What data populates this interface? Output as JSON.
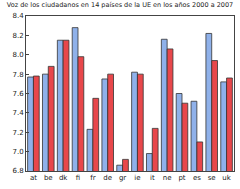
{
  "chart_data": {
    "type": "bar",
    "title": "Voz de los ciudadanos en 14 países de la UE en los años 2000 a 2007",
    "categories": [
      "at",
      "be",
      "dk",
      "fi",
      "fr",
      "de",
      "gr",
      "ie",
      "it",
      "ne",
      "pt",
      "es",
      "se",
      "uk"
    ],
    "series": [
      {
        "color": "#8fb1ea",
        "values": [
          7.77,
          7.8,
          8.15,
          8.28,
          7.23,
          7.75,
          6.86,
          7.82,
          6.98,
          8.16,
          7.6,
          7.52,
          8.22,
          7.72
        ]
      },
      {
        "color": "#e8474b",
        "values": [
          7.78,
          7.88,
          8.15,
          7.98,
          7.55,
          7.8,
          6.92,
          7.8,
          7.24,
          8.06,
          7.5,
          7.1,
          7.94,
          7.76
        ]
      }
    ],
    "ylim": [
      6.8,
      8.4
    ],
    "yticks": [
      6.8,
      {
        "value": 7,
        "label": "7.0"
      },
      7.2,
      7.4,
      7.6,
      7.8,
      {
        "value": 8,
        "label": "8.0"
      },
      8.2,
      8.4
    ],
    "grid": false
  }
}
